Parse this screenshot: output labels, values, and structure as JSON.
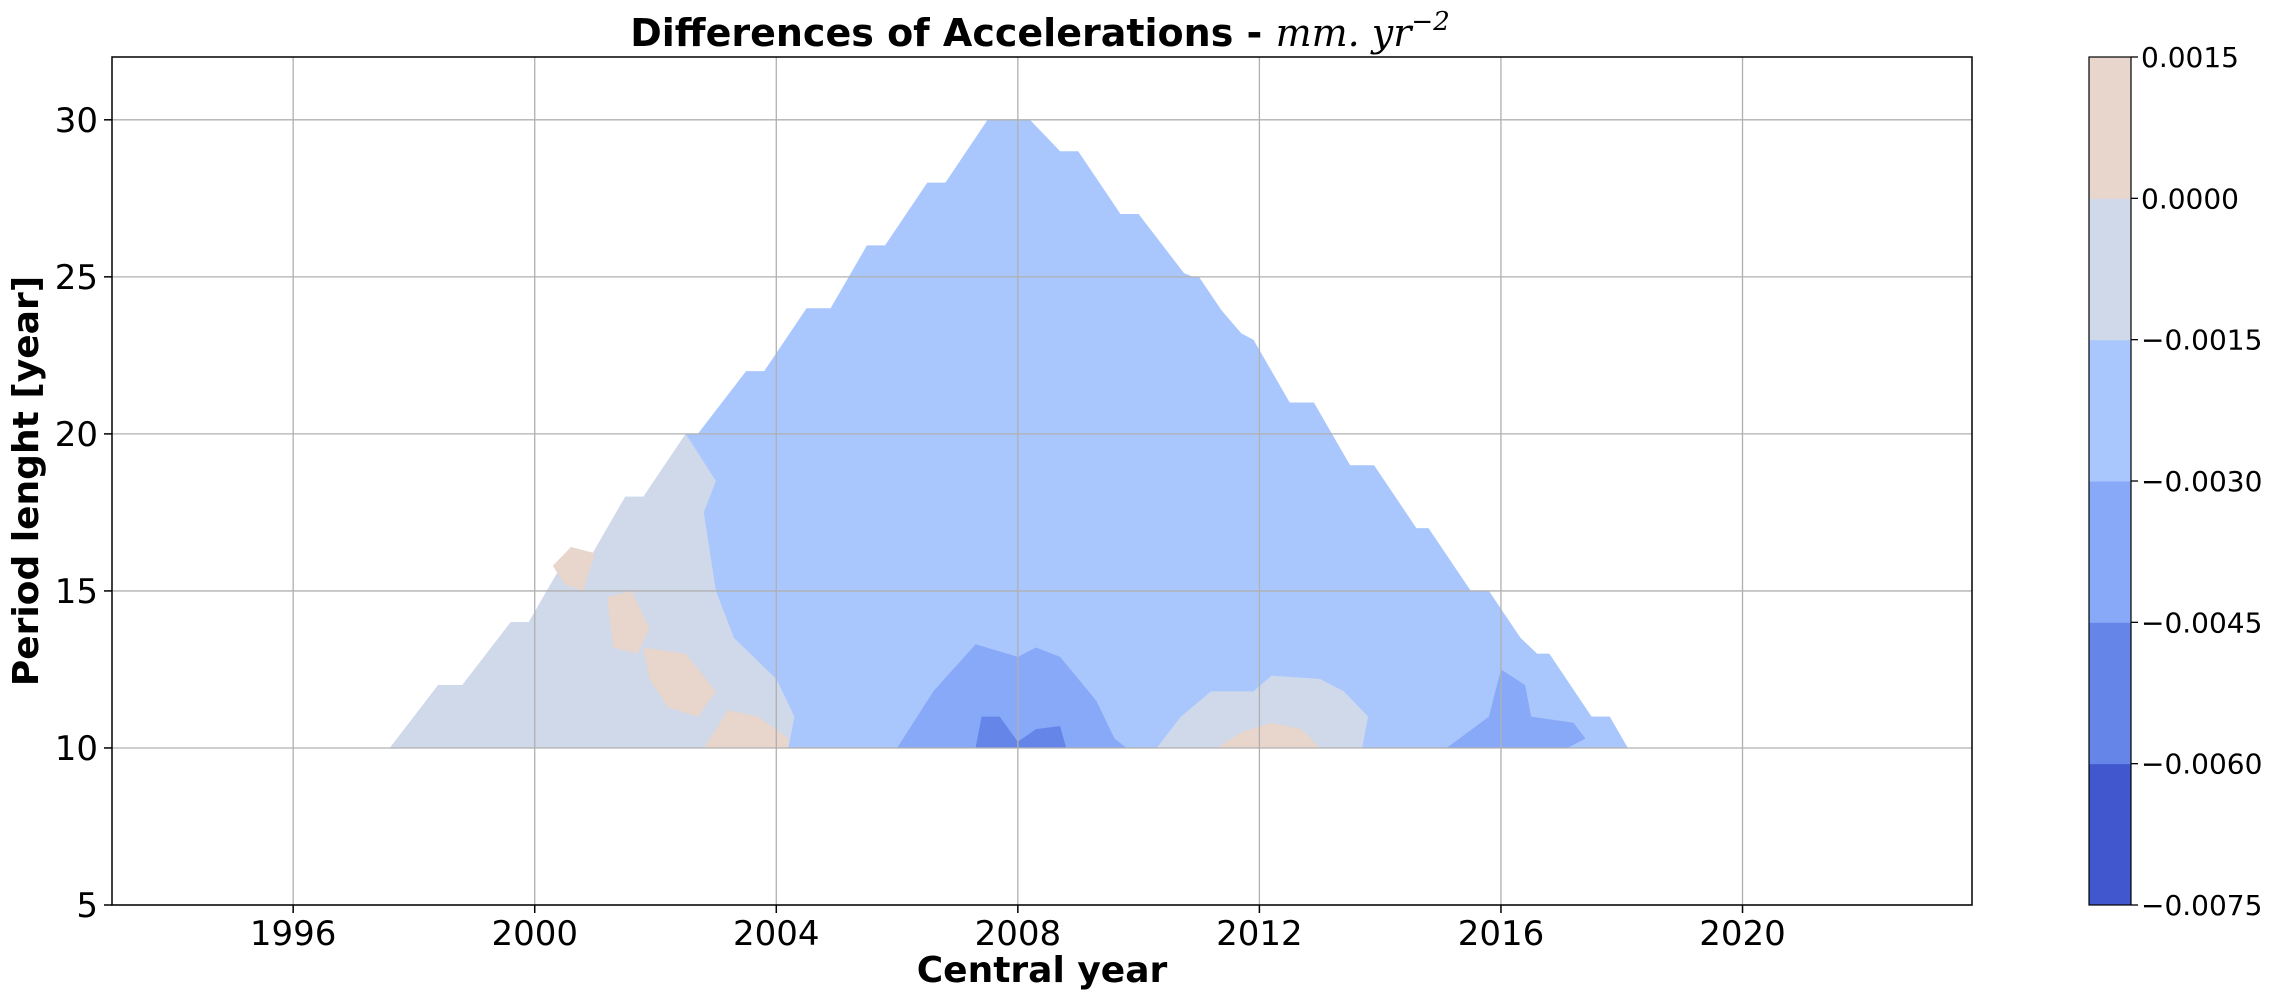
{
  "chart_data": {
    "type": "contourf",
    "title": "Differences of Accelerations - ",
    "title_unit_base": "mm. yr",
    "title_unit_exp": "−2",
    "xlabel": "Central year",
    "ylabel": "Period lenght [year]",
    "xlim": [
      1993,
      2023.8
    ],
    "ylim": [
      5,
      32
    ],
    "x_ticks": [
      1996,
      2000,
      2004,
      2008,
      2012,
      2016,
      2020
    ],
    "y_ticks": [
      5,
      10,
      15,
      20,
      25,
      30
    ],
    "grid": true,
    "colorbar": {
      "position": "right",
      "levels": [
        -0.0075,
        -0.006,
        -0.0045,
        -0.003,
        -0.0015,
        0.0,
        0.0015
      ],
      "tick_labels": [
        "−0.0075",
        "−0.0060",
        "−0.0045",
        "−0.0030",
        "−0.0015",
        "0.0000",
        "0.0015"
      ],
      "colors": [
        "#4157cd",
        "#6685e8",
        "#88a8f8",
        "#aac7fd",
        "#cfd9ea",
        "#e8d5cb"
      ]
    },
    "domain_outline": [
      [
        1997.6,
        10
      ],
      [
        1998.4,
        12
      ],
      [
        1998.8,
        12
      ],
      [
        1999.6,
        14
      ],
      [
        1999.9,
        14
      ],
      [
        2000.5,
        16
      ],
      [
        2000.9,
        16
      ],
      [
        2001.5,
        18
      ],
      [
        2001.8,
        18
      ],
      [
        2002.5,
        20
      ],
      [
        2002.7,
        20
      ],
      [
        2003.5,
        22
      ],
      [
        2003.8,
        22
      ],
      [
        2004.5,
        24
      ],
      [
        2004.9,
        24
      ],
      [
        2005.5,
        26
      ],
      [
        2005.8,
        26
      ],
      [
        2006.5,
        28
      ],
      [
        2006.8,
        28
      ],
      [
        2007.5,
        30
      ],
      [
        2008.2,
        30
      ],
      [
        2008.7,
        29
      ],
      [
        2009.0,
        29
      ],
      [
        2009.7,
        27
      ],
      [
        2010.0,
        27
      ],
      [
        2010.8,
        25
      ],
      [
        2011.0,
        25
      ],
      [
        2011.7,
        23
      ],
      [
        2011.9,
        23
      ],
      [
        2012.5,
        21
      ],
      [
        2012.9,
        21
      ],
      [
        2013.5,
        19
      ],
      [
        2013.9,
        19
      ],
      [
        2014.6,
        17
      ],
      [
        2014.8,
        17
      ],
      [
        2015.5,
        15
      ],
      [
        2015.8,
        15
      ],
      [
        2016.5,
        13
      ],
      [
        2016.8,
        13
      ],
      [
        2017.5,
        11
      ],
      [
        2017.8,
        11
      ],
      [
        2018.1,
        10
      ]
    ],
    "regions": [
      {
        "level_index": 4,
        "label": "-0.0015 to 0.0000",
        "polygon": [
          [
            1997.6,
            10
          ],
          [
            1998.4,
            12
          ],
          [
            1998.8,
            12
          ],
          [
            1999.6,
            14
          ],
          [
            1999.9,
            14
          ],
          [
            2000.5,
            16
          ],
          [
            2000.9,
            16
          ],
          [
            2001.5,
            18
          ],
          [
            2001.8,
            18
          ],
          [
            2002.5,
            20
          ],
          [
            2003.0,
            18.5
          ],
          [
            2002.8,
            17.5
          ],
          [
            2003.0,
            15
          ],
          [
            2003.3,
            13.5
          ],
          [
            2004.0,
            12.2
          ],
          [
            2004.3,
            11
          ],
          [
            2004.2,
            10
          ]
        ]
      },
      {
        "level_index": 5,
        "label": "0.0000 to 0.0015",
        "polygon": [
          [
            2000.3,
            15.8
          ],
          [
            2000.6,
            16.4
          ],
          [
            2001.0,
            16.2
          ],
          [
            2000.8,
            15.0
          ],
          [
            2000.5,
            15.2
          ]
        ]
      },
      {
        "level_index": 5,
        "label": "0.0000 to 0.0015",
        "polygon": [
          [
            2001.2,
            14.8
          ],
          [
            2001.6,
            15.0
          ],
          [
            2001.9,
            13.8
          ],
          [
            2001.7,
            13.0
          ],
          [
            2001.3,
            13.2
          ]
        ]
      },
      {
        "level_index": 5,
        "label": "0.0000 to 0.0015",
        "polygon": [
          [
            2001.8,
            13.2
          ],
          [
            2002.5,
            13.0
          ],
          [
            2003.0,
            11.8
          ],
          [
            2002.7,
            11.0
          ],
          [
            2002.2,
            11.3
          ],
          [
            2001.9,
            12.2
          ]
        ]
      },
      {
        "level_index": 5,
        "label": "0.0000 to 0.0015",
        "polygon": [
          [
            2002.8,
            10
          ],
          [
            2003.2,
            11.2
          ],
          [
            2003.7,
            11.0
          ],
          [
            2004.2,
            10.3
          ],
          [
            2004.2,
            10
          ]
        ]
      },
      {
        "level_index": 3,
        "label": "-0.0045 to -0.0030",
        "polygon": [
          [
            2005.1,
            10
          ],
          [
            2005.0,
            12
          ],
          [
            2005.0,
            14.5
          ],
          [
            2005.3,
            16.8
          ],
          [
            2005.8,
            16.7
          ],
          [
            2006.3,
            17.5
          ],
          [
            2006.6,
            18.0
          ],
          [
            2006.9,
            17.5
          ],
          [
            2007.2,
            17.8
          ],
          [
            2007.7,
            17.9
          ],
          [
            2008.1,
            18.0
          ],
          [
            2008.4,
            17.8
          ],
          [
            2008.4,
            19.5
          ],
          [
            2008.9,
            20.3
          ],
          [
            2008.9,
            22.0
          ],
          [
            2009.4,
            23.0
          ],
          [
            2009.9,
            25.2
          ],
          [
            2010.4,
            25.4
          ],
          [
            2010.9,
            25.0
          ],
          [
            2011.7,
            23.2
          ],
          [
            2011.9,
            23
          ],
          [
            2012.5,
            21
          ],
          [
            2012.9,
            21
          ],
          [
            2013.5,
            19
          ],
          [
            2013.6,
            17.2
          ],
          [
            2013.2,
            17.8
          ],
          [
            2012.8,
            17.6
          ],
          [
            2012.5,
            16.6
          ],
          [
            2011.3,
            15.2
          ],
          [
            2010.9,
            15.2
          ],
          [
            2010.2,
            14.5
          ],
          [
            2009.9,
            13.2
          ],
          [
            2009.5,
            11.5
          ],
          [
            2009.8,
            10
          ]
        ]
      },
      {
        "level_index": 4,
        "label": "-0.0015 to 0.0000",
        "polygon": [
          [
            2010.3,
            10
          ],
          [
            2010.7,
            11.0
          ],
          [
            2011.2,
            11.8
          ],
          [
            2011.9,
            11.8
          ],
          [
            2012.2,
            12.3
          ],
          [
            2013.0,
            12.2
          ],
          [
            2013.4,
            11.8
          ],
          [
            2013.8,
            11.0
          ],
          [
            2013.7,
            10
          ]
        ]
      },
      {
        "level_index": 5,
        "label": "0.0000 to 0.0015",
        "polygon": [
          [
            2011.3,
            10
          ],
          [
            2011.7,
            10.5
          ],
          [
            2012.2,
            10.8
          ],
          [
            2012.7,
            10.6
          ],
          [
            2013.0,
            10
          ]
        ]
      },
      {
        "level_index": 3,
        "label": "-0.0045 to -0.0030",
        "polygon": [
          [
            2014.2,
            10
          ],
          [
            2014.8,
            11.8
          ],
          [
            2015.3,
            12.8
          ],
          [
            2015.6,
            13.8
          ],
          [
            2016.0,
            14.1
          ],
          [
            2016.6,
            13
          ],
          [
            2016.8,
            13
          ],
          [
            2017.5,
            11
          ],
          [
            2017.8,
            11
          ],
          [
            2018.1,
            10
          ]
        ]
      },
      {
        "level_index": 2,
        "label": "-0.0060 to -0.0045",
        "polygon": [
          [
            2015.1,
            10
          ],
          [
            2015.8,
            11.0
          ],
          [
            2016.0,
            12.5
          ],
          [
            2016.4,
            12.0
          ],
          [
            2016.5,
            11.0
          ],
          [
            2017.2,
            10.8
          ],
          [
            2017.4,
            10.3
          ],
          [
            2017.1,
            10
          ]
        ]
      },
      {
        "level_index": 2,
        "label": "-0.0060 to -0.0045",
        "polygon": [
          [
            2006.0,
            10
          ],
          [
            2006.6,
            11.8
          ],
          [
            2007.3,
            13.3
          ],
          [
            2008.0,
            12.9
          ],
          [
            2008.3,
            13.2
          ],
          [
            2008.7,
            12.9
          ],
          [
            2009.3,
            11.5
          ],
          [
            2009.6,
            10.3
          ],
          [
            2009.8,
            10
          ]
        ]
      },
      {
        "level_index": 1,
        "label": "-0.0075 to -0.0060",
        "polygon": [
          [
            2007.3,
            10
          ],
          [
            2007.4,
            11.0
          ],
          [
            2007.7,
            11.0
          ],
          [
            2008.0,
            10.2
          ],
          [
            2008.3,
            10.6
          ],
          [
            2008.7,
            10.7
          ],
          [
            2008.8,
            10
          ]
        ]
      }
    ]
  }
}
